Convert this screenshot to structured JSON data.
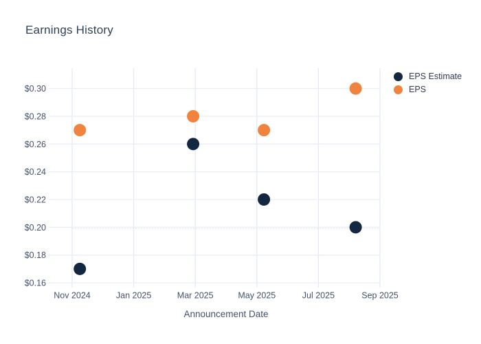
{
  "page": {
    "background": "#ffffff"
  },
  "header": {
    "title": "Earnings History"
  },
  "colors": {
    "title_text": "#2e4057",
    "tick_text": "#42526e",
    "legend_text": "#2f3b52",
    "grid_horizontal": "#eaedf4",
    "grid_vertical": "#e3eaf4",
    "dotted_line": "#dde4f0",
    "eps_estimate": "#142741",
    "eps": "#f0833d",
    "background": "#ffffff"
  },
  "chart_data": {
    "type": "scatter",
    "title": "Earnings History",
    "xlabel": "Announcement Date",
    "ylabel": "",
    "grid": true,
    "legend_position": "outside-top-right",
    "marker_diameter_px": 18,
    "x_axis": {
      "unit": "months since Nov 2024",
      "lim": [
        0,
        10
      ],
      "ticks": [
        {
          "pos": 0,
          "label": "Nov 2024"
        },
        {
          "pos": 2,
          "label": "Jan 2025"
        },
        {
          "pos": 4,
          "label": "Mar 2025"
        },
        {
          "pos": 6,
          "label": "May 2025"
        },
        {
          "pos": 8,
          "label": "Jul 2025"
        },
        {
          "pos": 10,
          "label": "Sep 2025"
        }
      ]
    },
    "y_axis": {
      "lim": [
        0.16,
        0.3147
      ],
      "ticks": [
        {
          "pos": 0.16,
          "label": "$0.16"
        },
        {
          "pos": 0.18,
          "label": "$0.18"
        },
        {
          "pos": 0.2,
          "label": "$0.20"
        },
        {
          "pos": 0.22,
          "label": "$0.22"
        },
        {
          "pos": 0.24,
          "label": "$0.24"
        },
        {
          "pos": 0.26,
          "label": "$0.26"
        },
        {
          "pos": 0.28,
          "label": "$0.28"
        },
        {
          "pos": 0.3,
          "label": "$0.30"
        }
      ]
    },
    "extra_dotted_line_y": 0.199,
    "series": [
      {
        "name": "EPS Estimate",
        "color": "#142741",
        "points": [
          {
            "x": 0.25,
            "y": 0.17
          },
          {
            "x": 3.93,
            "y": 0.26
          },
          {
            "x": 6.23,
            "y": 0.22
          },
          {
            "x": 9.21,
            "y": 0.2
          }
        ]
      },
      {
        "name": "EPS",
        "color": "#f0833d",
        "points": [
          {
            "x": 0.25,
            "y": 0.27
          },
          {
            "x": 3.93,
            "y": 0.28
          },
          {
            "x": 6.23,
            "y": 0.27
          },
          {
            "x": 9.21,
            "y": 0.3
          }
        ]
      }
    ]
  },
  "legend": {
    "items": [
      {
        "label": "EPS Estimate",
        "color": "#142741"
      },
      {
        "label": "EPS",
        "color": "#f0833d"
      }
    ]
  }
}
